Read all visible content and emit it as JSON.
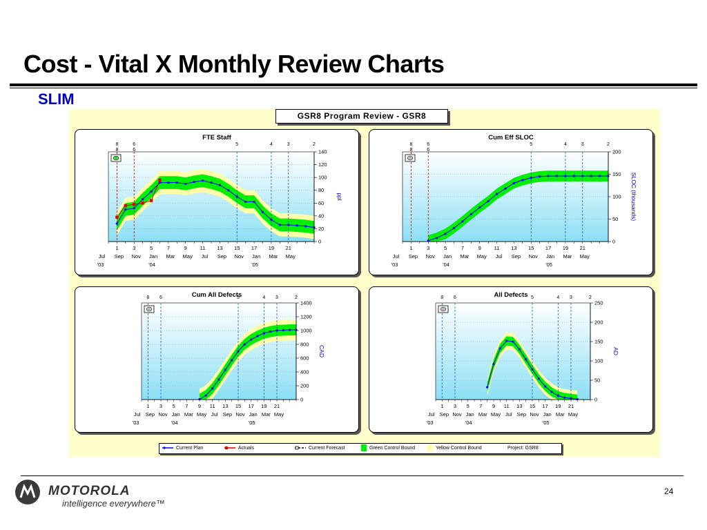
{
  "slide": {
    "title": "Cost - Vital X Monthly Review Charts",
    "subtitle": "SLIM",
    "page_number": "24",
    "brand": "MOTOROLA",
    "tagline": "intelligence everywhere™"
  },
  "panel": {
    "title": "GSR8 Program Review - GSR8"
  },
  "legend": {
    "items": [
      {
        "label": "Current Plan",
        "symbol": "plan"
      },
      {
        "label": "Actuals",
        "symbol": "actual"
      },
      {
        "label": "Current Forecast",
        "symbol": "forecast"
      },
      {
        "label": "Green Control Bound",
        "symbol": "green"
      },
      {
        "label": "Yellow Control Bound",
        "symbol": "yellow"
      },
      {
        "label": "Project: GSR8",
        "symbol": "none"
      }
    ]
  },
  "colors": {
    "title_blue": "#0000c0",
    "plan_line": "#0000ff",
    "actual": "#e00000",
    "green_bound": "#00ee00",
    "yellow_bound": "#ffffa8",
    "plot_bg_top": "#ffffff",
    "plot_bg_bottom": "#8cdff5",
    "panel_bg": "#ffffcc"
  },
  "chart_data": [
    {
      "type": "line",
      "title": "FTE Staff",
      "ylabel": "ppl",
      "ylim": [
        0,
        140
      ],
      "yticks": [
        0,
        20,
        40,
        60,
        80,
        100,
        120,
        140
      ],
      "x_range": [
        0,
        24
      ],
      "top_labels_row1": [
        {
          "x": 1,
          "t": "8"
        },
        {
          "x": 3,
          "t": "6"
        },
        {
          "x": 15,
          "t": "5"
        },
        {
          "x": 19,
          "t": "4"
        },
        {
          "x": 21,
          "t": "3"
        },
        {
          "x": 24,
          "t": "2"
        }
      ],
      "top_labels_row2": [
        {
          "x": 1,
          "t": "8"
        },
        {
          "x": 3,
          "t": "6"
        }
      ],
      "milestones": [
        {
          "x": 1,
          "color": "red"
        },
        {
          "x": 3,
          "color": "red"
        },
        {
          "x": 15,
          "color": "blue"
        },
        {
          "x": 19,
          "color": "blue"
        },
        {
          "x": 21,
          "color": "blue"
        },
        {
          "x": 24,
          "color": "blue"
        }
      ],
      "tick_row": [
        {
          "x": 1,
          "t": "1"
        },
        {
          "x": 3,
          "t": "3"
        },
        {
          "x": 5,
          "t": "5"
        },
        {
          "x": 7,
          "t": "7"
        },
        {
          "x": 9,
          "t": "9"
        },
        {
          "x": 11,
          "t": "11"
        },
        {
          "x": 13,
          "t": "13"
        },
        {
          "x": 15,
          "t": "15"
        },
        {
          "x": 17,
          "t": "17"
        },
        {
          "x": 19,
          "t": "19"
        },
        {
          "x": 21,
          "t": "21"
        }
      ],
      "month_row": [
        {
          "x": -1,
          "t": "Jul"
        },
        {
          "x": 1,
          "t": "Sep"
        },
        {
          "x": 3,
          "t": "Nov"
        },
        {
          "x": 5,
          "t": "Jan"
        },
        {
          "x": 7,
          "t": "Mar"
        },
        {
          "x": 9,
          "t": "May"
        },
        {
          "x": 11,
          "t": "Jul"
        },
        {
          "x": 13,
          "t": "Sep"
        },
        {
          "x": 15,
          "t": "Nov"
        },
        {
          "x": 17,
          "t": "Jan"
        },
        {
          "x": 19,
          "t": "Mar"
        },
        {
          "x": 21,
          "t": "May"
        }
      ],
      "year_row": [
        {
          "x": -1,
          "t": "'03"
        },
        {
          "x": 5,
          "t": "'04"
        },
        {
          "x": 17,
          "t": "'05"
        }
      ],
      "plan": {
        "x": [
          1,
          2,
          3,
          4,
          5,
          6,
          7,
          8,
          9,
          10,
          11,
          12,
          13,
          14,
          15,
          16,
          17,
          18,
          19,
          20,
          21,
          22,
          23,
          24
        ],
        "y": [
          28,
          50,
          52,
          66,
          78,
          92,
          92,
          92,
          90,
          93,
          95,
          92,
          88,
          80,
          70,
          62,
          62,
          46,
          34,
          26,
          26,
          25,
          24,
          22
        ]
      },
      "green_band": {
        "upper_add": 10,
        "lower_sub": 10
      },
      "yellow_band": {
        "upper_add": 18,
        "lower_sub": 18
      },
      "actuals": {
        "x": [
          1,
          2,
          3,
          4,
          5,
          6
        ],
        "y": [
          38,
          56,
          58,
          60,
          64,
          96
        ]
      }
    },
    {
      "type": "line",
      "title": "Cum Eff SLOC",
      "ylabel": "SLOC (thousands)",
      "ylim": [
        0,
        200
      ],
      "yticks": [
        0,
        50,
        100,
        150,
        200
      ],
      "x_range": [
        0,
        24
      ],
      "top_labels_row1": [
        {
          "x": 1,
          "t": "8"
        },
        {
          "x": 3,
          "t": "6"
        },
        {
          "x": 15,
          "t": "5"
        },
        {
          "x": 19,
          "t": "4"
        },
        {
          "x": 21,
          "t": "3"
        },
        {
          "x": 24,
          "t": "2"
        }
      ],
      "top_labels_row2": [
        {
          "x": 1,
          "t": "8"
        },
        {
          "x": 3,
          "t": "6"
        }
      ],
      "milestones": [
        {
          "x": 1,
          "color": "red"
        },
        {
          "x": 3,
          "color": "red"
        },
        {
          "x": 15,
          "color": "blue"
        },
        {
          "x": 19,
          "color": "blue"
        },
        {
          "x": 21,
          "color": "blue"
        },
        {
          "x": 24,
          "color": "blue"
        }
      ],
      "tick_row": [
        {
          "x": 1,
          "t": "1"
        },
        {
          "x": 3,
          "t": "3"
        },
        {
          "x": 5,
          "t": "5"
        },
        {
          "x": 7,
          "t": "7"
        },
        {
          "x": 9,
          "t": "9"
        },
        {
          "x": 11,
          "t": "11"
        },
        {
          "x": 13,
          "t": "13"
        },
        {
          "x": 15,
          "t": "15"
        },
        {
          "x": 17,
          "t": "17"
        },
        {
          "x": 19,
          "t": "19"
        },
        {
          "x": 21,
          "t": "21"
        }
      ],
      "month_row": [
        {
          "x": -1,
          "t": "Jul"
        },
        {
          "x": 1,
          "t": "Sep"
        },
        {
          "x": 3,
          "t": "Nov"
        },
        {
          "x": 5,
          "t": "Jan"
        },
        {
          "x": 7,
          "t": "Mar"
        },
        {
          "x": 9,
          "t": "May"
        },
        {
          "x": 11,
          "t": "Jul"
        },
        {
          "x": 13,
          "t": "Sep"
        },
        {
          "x": 15,
          "t": "Nov"
        },
        {
          "x": 17,
          "t": "Jan"
        },
        {
          "x": 19,
          "t": "Mar"
        },
        {
          "x": 21,
          "t": "May"
        }
      ],
      "year_row": [
        {
          "x": -1,
          "t": "'03"
        },
        {
          "x": 5,
          "t": "'04"
        },
        {
          "x": 17,
          "t": "'05"
        }
      ],
      "plan": {
        "x": [
          3,
          4,
          5,
          6,
          7,
          8,
          9,
          10,
          11,
          12,
          13,
          14,
          15,
          16,
          17,
          18,
          19,
          20,
          21,
          22,
          23,
          24
        ],
        "y": [
          2,
          8,
          17,
          30,
          45,
          61,
          76,
          90,
          106,
          118,
          130,
          137,
          142,
          145,
          146,
          146,
          146,
          146,
          146,
          146,
          146,
          146
        ]
      },
      "green_band": {
        "upper_add": 12,
        "lower_sub": 12
      },
      "yellow_band": {
        "upper_add": 0,
        "lower_sub": 0
      },
      "actuals": {
        "x": [],
        "y": []
      }
    },
    {
      "type": "line",
      "title": "Cum All Defects",
      "ylabel": "CAD",
      "ylim": [
        0,
        1400
      ],
      "yticks": [
        0,
        200,
        400,
        600,
        800,
        1000,
        1200,
        1400
      ],
      "x_range": [
        0,
        24
      ],
      "top_labels_row1": [
        {
          "x": 1,
          "t": "8"
        },
        {
          "x": 3,
          "t": "6"
        },
        {
          "x": 15,
          "t": "5"
        },
        {
          "x": 19,
          "t": "4"
        },
        {
          "x": 21,
          "t": "3"
        },
        {
          "x": 24,
          "t": "2"
        }
      ],
      "top_labels_row2": [],
      "milestones": [
        {
          "x": 1,
          "color": "blue"
        },
        {
          "x": 3,
          "color": "blue"
        },
        {
          "x": 15,
          "color": "blue"
        },
        {
          "x": 19,
          "color": "blue"
        },
        {
          "x": 21,
          "color": "blue"
        },
        {
          "x": 24,
          "color": "blue"
        }
      ],
      "tick_row": [
        {
          "x": 1,
          "t": "1"
        },
        {
          "x": 3,
          "t": "3"
        },
        {
          "x": 5,
          "t": "5"
        },
        {
          "x": 7,
          "t": "7"
        },
        {
          "x": 9,
          "t": "9"
        },
        {
          "x": 11,
          "t": "11"
        },
        {
          "x": 13,
          "t": "13"
        },
        {
          "x": 15,
          "t": "15"
        },
        {
          "x": 17,
          "t": "17"
        },
        {
          "x": 19,
          "t": "19"
        },
        {
          "x": 21,
          "t": "21"
        }
      ],
      "month_row": [
        {
          "x": -1,
          "t": "Jul"
        },
        {
          "x": 1,
          "t": "Sep"
        },
        {
          "x": 3,
          "t": "Nov"
        },
        {
          "x": 5,
          "t": "Jan"
        },
        {
          "x": 7,
          "t": "Mar"
        },
        {
          "x": 9,
          "t": "May"
        },
        {
          "x": 11,
          "t": "Jul"
        },
        {
          "x": 13,
          "t": "Sep"
        },
        {
          "x": 15,
          "t": "Nov"
        },
        {
          "x": 17,
          "t": "Jan"
        },
        {
          "x": 19,
          "t": "Mar"
        },
        {
          "x": 21,
          "t": "May"
        }
      ],
      "year_row": [
        {
          "x": -1,
          "t": "'03"
        },
        {
          "x": 5,
          "t": "'04"
        },
        {
          "x": 17,
          "t": "'05"
        }
      ],
      "plan": {
        "x": [
          9,
          10,
          11,
          12,
          13,
          14,
          15,
          16,
          17,
          18,
          19,
          20,
          21,
          22,
          23,
          24
        ],
        "y": [
          5,
          60,
          160,
          290,
          430,
          570,
          700,
          800,
          870,
          920,
          960,
          985,
          1000,
          1005,
          1010,
          1010
        ]
      },
      "green_band": {
        "upper_add": 80,
        "lower_sub": 80
      },
      "yellow_band": {
        "upper_add": 150,
        "lower_sub": 150
      },
      "actuals": {
        "x": [],
        "y": []
      }
    },
    {
      "type": "line",
      "title": "All Defects",
      "ylabel": "AD",
      "ylim": [
        0,
        250
      ],
      "yticks": [
        0,
        50,
        100,
        150,
        200,
        250
      ],
      "x_range": [
        0,
        24
      ],
      "top_labels_row1": [
        {
          "x": 1,
          "t": "8"
        },
        {
          "x": 3,
          "t": "6"
        },
        {
          "x": 15,
          "t": "5"
        },
        {
          "x": 19,
          "t": "4"
        },
        {
          "x": 21,
          "t": "3"
        },
        {
          "x": 24,
          "t": "2"
        }
      ],
      "top_labels_row2": [],
      "milestones": [
        {
          "x": 1,
          "color": "blue"
        },
        {
          "x": 3,
          "color": "blue"
        },
        {
          "x": 15,
          "color": "blue"
        },
        {
          "x": 19,
          "color": "blue"
        },
        {
          "x": 21,
          "color": "blue"
        },
        {
          "x": 24,
          "color": "blue"
        }
      ],
      "tick_row": [
        {
          "x": 1,
          "t": "1"
        },
        {
          "x": 3,
          "t": "3"
        },
        {
          "x": 5,
          "t": "5"
        },
        {
          "x": 7,
          "t": "7"
        },
        {
          "x": 9,
          "t": "9"
        },
        {
          "x": 11,
          "t": "11"
        },
        {
          "x": 13,
          "t": "13"
        },
        {
          "x": 15,
          "t": "15"
        },
        {
          "x": 17,
          "t": "17"
        },
        {
          "x": 19,
          "t": "19"
        },
        {
          "x": 21,
          "t": "21"
        }
      ],
      "month_row": [
        {
          "x": -1,
          "t": "Jul"
        },
        {
          "x": 1,
          "t": "Sep"
        },
        {
          "x": 3,
          "t": "Nov"
        },
        {
          "x": 5,
          "t": "Jan"
        },
        {
          "x": 7,
          "t": "Mar"
        },
        {
          "x": 9,
          "t": "May"
        },
        {
          "x": 11,
          "t": "Jul"
        },
        {
          "x": 13,
          "t": "Sep"
        },
        {
          "x": 15,
          "t": "Nov"
        },
        {
          "x": 17,
          "t": "Jan"
        },
        {
          "x": 19,
          "t": "Mar"
        },
        {
          "x": 21,
          "t": "May"
        }
      ],
      "year_row": [
        {
          "x": -1,
          "t": "'03"
        },
        {
          "x": 5,
          "t": "'04"
        },
        {
          "x": 17,
          "t": "'05"
        }
      ],
      "plan": {
        "x": [
          8,
          9,
          10,
          11,
          12,
          13,
          14,
          15,
          16,
          17,
          18,
          19,
          20,
          21,
          22
        ],
        "y": [
          32,
          92,
          132,
          152,
          150,
          130,
          104,
          78,
          54,
          34,
          20,
          10,
          5,
          3,
          1
        ]
      },
      "green_band": {
        "upper_add": 12,
        "lower_sub": 12
      },
      "yellow_band": {
        "upper_add": 22,
        "lower_sub": 22
      },
      "actuals": {
        "x": [],
        "y": []
      }
    }
  ]
}
